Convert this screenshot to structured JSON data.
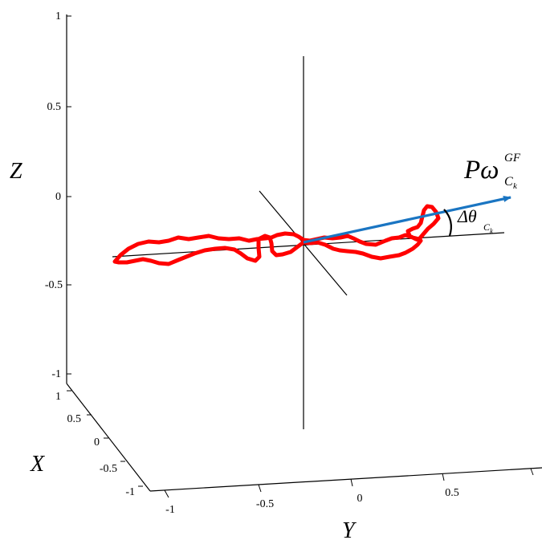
{
  "chart_data": {
    "type": "line",
    "title": "",
    "axes": {
      "x": {
        "label": "X",
        "ticks": [
          "-1",
          "-0.5",
          "0",
          "0.5",
          "1"
        ],
        "range": [
          -1,
          1
        ]
      },
      "y": {
        "label": "Y",
        "ticks": [
          "-1",
          "-0.5",
          "0",
          "0.5"
        ],
        "range": [
          -1,
          1
        ]
      },
      "z": {
        "label": "Z",
        "ticks": [
          "-1",
          "-0.5",
          "0",
          "0.5",
          "1"
        ],
        "range": [
          -1,
          1
        ]
      }
    },
    "annotations": {
      "vector": {
        "base": "Pω",
        "superscript": "GF",
        "subscript": "C",
        "subsubscript": "k"
      },
      "angle": {
        "base": "Δθ",
        "subscript": "C",
        "subsubscript": "k"
      }
    },
    "colors": {
      "trajectory": "#ff0000",
      "vector": "#1a75c2",
      "axes": "#000000",
      "reference": "#000000"
    },
    "grid": false
  }
}
